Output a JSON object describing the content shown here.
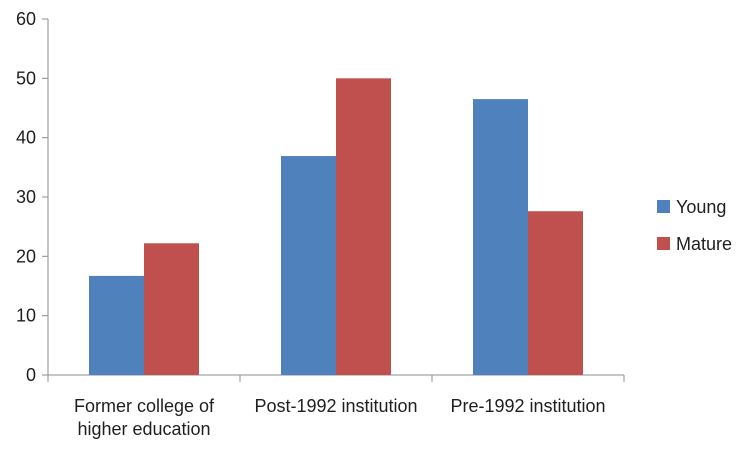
{
  "chart_data": {
    "type": "bar",
    "categories": [
      [
        "Former college of",
        "higher education"
      ],
      [
        "Post-1992 institution"
      ],
      [
        "Pre-1992 institution"
      ]
    ],
    "series": [
      {
        "name": "Young",
        "color": "#4F81BD",
        "values": [
          16.7,
          36.9,
          46.5
        ]
      },
      {
        "name": "Mature",
        "color": "#C0504D",
        "values": [
          22.2,
          50.0,
          27.6
        ]
      }
    ],
    "y_ticks": [
      0,
      10,
      20,
      30,
      40,
      50,
      60
    ],
    "ylim": [
      0,
      60
    ],
    "grid": false,
    "legend_position": "right"
  }
}
